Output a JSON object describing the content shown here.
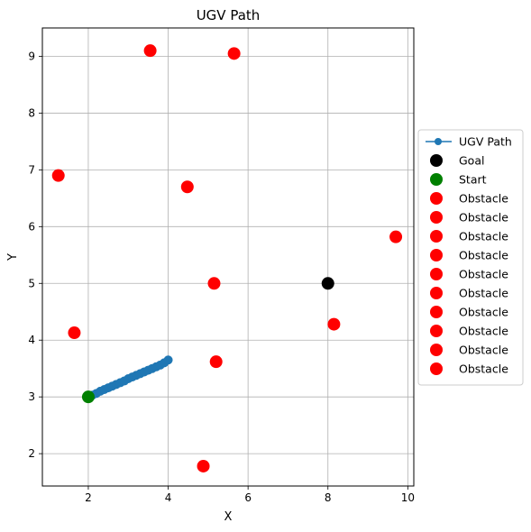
{
  "chart_data": {
    "type": "scatter",
    "title": "UGV Path",
    "xlabel": "X",
    "ylabel": "Y",
    "xlim": [
      0.85,
      10.15
    ],
    "ylim": [
      1.43,
      9.5
    ],
    "xticks": [
      2,
      4,
      6,
      8,
      10
    ],
    "yticks": [
      2,
      3,
      4,
      5,
      6,
      7,
      8,
      9
    ],
    "grid": true,
    "legend_position": "outside-right",
    "colors": {
      "path": "#1f77b4",
      "goal": "#000000",
      "start": "#008000",
      "obstacle": "#ff0000",
      "grid": "#b0b0b0"
    },
    "path": {
      "name": "UGV Path",
      "x": [
        2.0,
        2.1,
        2.2,
        2.3,
        2.4,
        2.5,
        2.6,
        2.7,
        2.8,
        2.9,
        3.0,
        3.1,
        3.2,
        3.3,
        3.4,
        3.5,
        3.6,
        3.7,
        3.8,
        3.9,
        4.0
      ],
      "y": [
        3.0,
        3.03,
        3.06,
        3.1,
        3.13,
        3.16,
        3.19,
        3.22,
        3.25,
        3.28,
        3.32,
        3.35,
        3.38,
        3.41,
        3.44,
        3.47,
        3.5,
        3.53,
        3.56,
        3.6,
        3.65
      ]
    },
    "goal": {
      "name": "Goal",
      "x": 8.0,
      "y": 5.0
    },
    "start": {
      "name": "Start",
      "x": 2.0,
      "y": 3.0
    },
    "obstacles": [
      {
        "name": "Obstacle",
        "x": 3.55,
        "y": 9.1
      },
      {
        "name": "Obstacle",
        "x": 5.65,
        "y": 9.05
      },
      {
        "name": "Obstacle",
        "x": 1.25,
        "y": 6.9
      },
      {
        "name": "Obstacle",
        "x": 4.48,
        "y": 6.7
      },
      {
        "name": "Obstacle",
        "x": 9.7,
        "y": 5.82
      },
      {
        "name": "Obstacle",
        "x": 5.15,
        "y": 5.0
      },
      {
        "name": "Obstacle",
        "x": 8.15,
        "y": 4.28
      },
      {
        "name": "Obstacle",
        "x": 1.65,
        "y": 4.13
      },
      {
        "name": "Obstacle",
        "x": 5.2,
        "y": 3.62
      },
      {
        "name": "Obstacle",
        "x": 4.88,
        "y": 1.78
      }
    ]
  }
}
